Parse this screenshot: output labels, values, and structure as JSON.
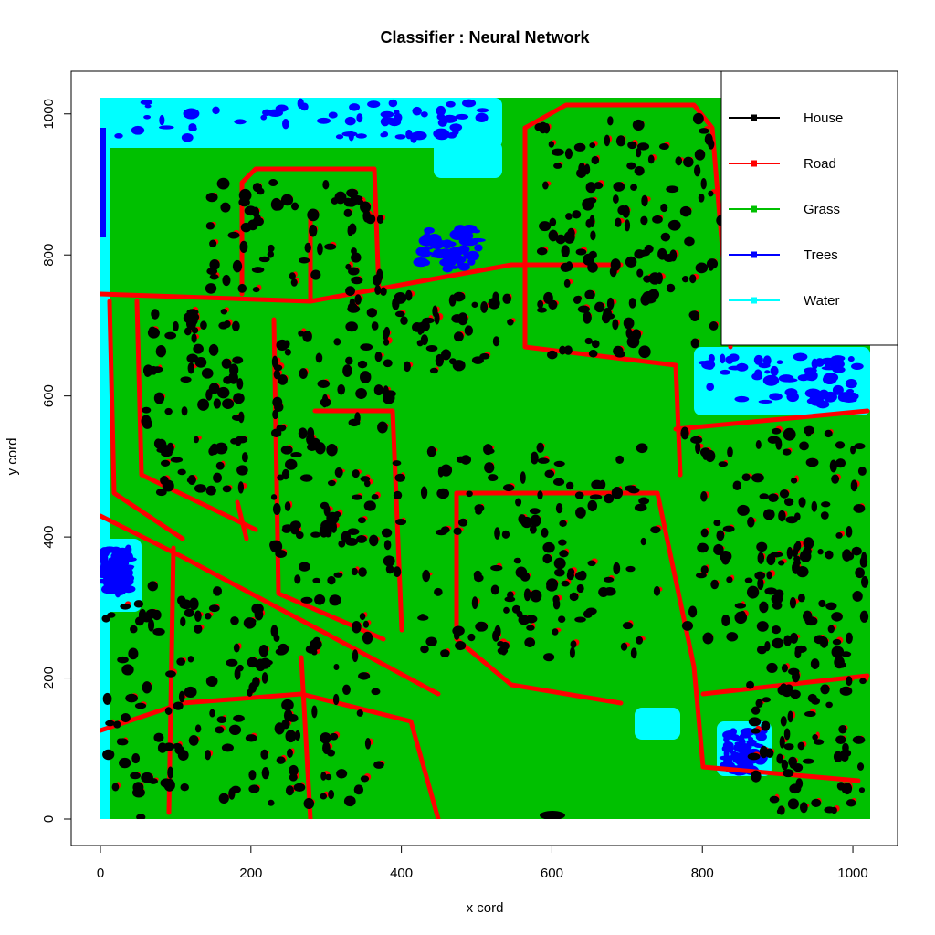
{
  "chart_data": {
    "type": "scatter",
    "title": "Classifier : Neural Network",
    "xlabel": "x cord",
    "ylabel": "y cord",
    "xlim": [
      0,
      1023
    ],
    "ylim": [
      0,
      1023
    ],
    "x_ticks": [
      0,
      200,
      400,
      600,
      800,
      1000
    ],
    "y_ticks": [
      0,
      200,
      400,
      600,
      800,
      1000
    ],
    "grid": false,
    "legend_position": "top-right",
    "series": [
      {
        "name": "House",
        "color": "#000000"
      },
      {
        "name": "Road",
        "color": "#ff0000"
      },
      {
        "name": "Grass",
        "color": "#00c000"
      },
      {
        "name": "Trees",
        "color": "#0000ff"
      },
      {
        "name": "Water",
        "color": "#00ffff"
      }
    ]
  }
}
